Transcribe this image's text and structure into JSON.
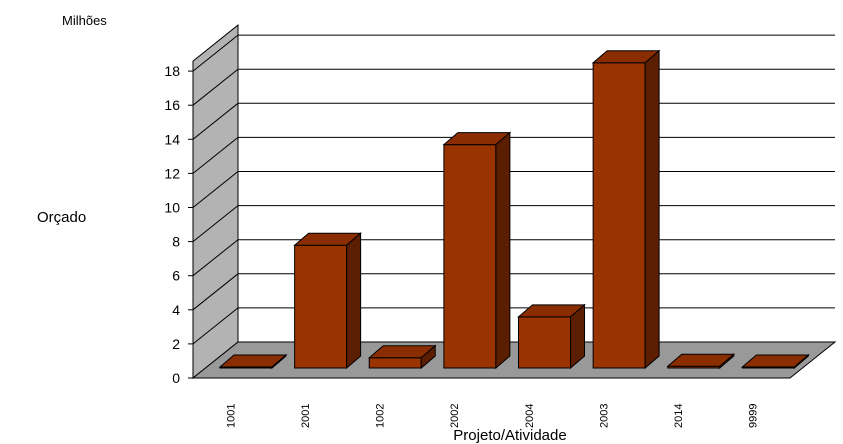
{
  "chart_data": {
    "type": "bar",
    "categories": [
      "1001",
      "2001",
      "1002",
      "2002",
      "2004",
      "2003",
      "2014",
      "9999"
    ],
    "values": [
      0,
      7.2,
      0.6,
      13.1,
      3.0,
      17.9,
      0.1,
      0
    ],
    "xlabel": "Projeto/Atividade",
    "ylabel": "Orçado",
    "unit_label": "Milhões",
    "ylim": [
      0,
      18
    ],
    "yticks": [
      0,
      2,
      4,
      6,
      8,
      10,
      12,
      14,
      16,
      18
    ],
    "grid": true,
    "three_d": true,
    "legend": "none",
    "colors": {
      "bar_front": "#993300",
      "bar_top": "#8a2d00",
      "bar_side": "#5c1e00",
      "back_wall": "#ffffff",
      "side_wall": "#b3b3b3",
      "floor": "#999999",
      "gridline": "#000000"
    }
  }
}
